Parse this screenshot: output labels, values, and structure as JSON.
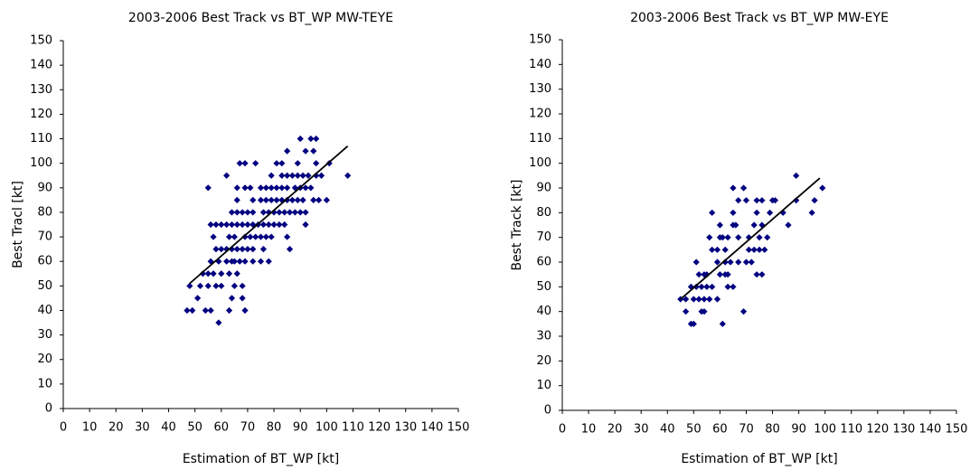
{
  "chart_data": [
    {
      "type": "scatter",
      "title": "2003-2006 Best Track vs BT_WP MW-TEYE",
      "x_label": "Estimation of BT_WP [kt]",
      "y_label": "Best Tracl [kt]",
      "color": "#000080",
      "x": [
        90,
        94,
        96,
        85,
        92,
        95,
        67,
        69,
        73,
        81,
        83,
        89,
        96,
        101,
        62,
        79,
        83,
        85,
        87,
        89,
        91,
        93,
        96,
        98,
        108,
        55,
        66,
        69,
        71,
        75,
        77,
        79,
        81,
        83,
        85,
        88,
        90,
        92,
        94,
        66,
        72,
        75,
        77,
        79,
        81,
        83,
        85,
        87,
        89,
        91,
        95,
        97,
        100,
        64,
        66,
        68,
        70,
        72,
        76,
        78,
        80,
        82,
        84,
        86,
        88,
        90,
        92,
        56,
        58,
        60,
        62,
        64,
        66,
        68,
        70,
        72,
        74,
        76,
        78,
        80,
        82,
        84,
        92,
        57,
        63,
        65,
        69,
        71,
        73,
        75,
        77,
        79,
        85,
        58,
        60,
        62,
        64,
        66,
        68,
        70,
        72,
        76,
        86,
        56,
        59,
        62,
        64,
        65,
        67,
        69,
        72,
        75,
        78,
        53,
        55,
        57,
        60,
        63,
        66,
        48,
        52,
        55,
        58,
        60,
        65,
        68,
        51,
        64,
        68,
        47,
        49,
        54,
        56,
        63,
        69,
        59
      ],
      "values": [
        110,
        110,
        110,
        105,
        105,
        105,
        100,
        100,
        100,
        100,
        100,
        100,
        100,
        100,
        95,
        95,
        95,
        95,
        95,
        95,
        95,
        95,
        95,
        95,
        95,
        90,
        90,
        90,
        90,
        90,
        90,
        90,
        90,
        90,
        90,
        90,
        90,
        90,
        90,
        85,
        85,
        85,
        85,
        85,
        85,
        85,
        85,
        85,
        85,
        85,
        85,
        85,
        85,
        80,
        80,
        80,
        80,
        80,
        80,
        80,
        80,
        80,
        80,
        80,
        80,
        80,
        80,
        75,
        75,
        75,
        75,
        75,
        75,
        75,
        75,
        75,
        75,
        75,
        75,
        75,
        75,
        75,
        75,
        70,
        70,
        70,
        70,
        70,
        70,
        70,
        70,
        70,
        70,
        65,
        65,
        65,
        65,
        65,
        65,
        65,
        65,
        65,
        65,
        60,
        60,
        60,
        60,
        60,
        60,
        60,
        60,
        60,
        60,
        55,
        55,
        55,
        55,
        55,
        55,
        50,
        50,
        50,
        50,
        50,
        50,
        50,
        45,
        45,
        45,
        40,
        40,
        40,
        40,
        40,
        40,
        35
      ],
      "trendline": {
        "x": [
          48,
          108
        ],
        "y": [
          51,
          107
        ]
      },
      "xlim": [
        0,
        150
      ],
      "ylim": [
        0,
        150
      ],
      "xticks": [
        0,
        10,
        20,
        30,
        40,
        50,
        60,
        70,
        80,
        90,
        100,
        110,
        120,
        130,
        140,
        150
      ],
      "yticks": [
        0,
        10,
        20,
        30,
        40,
        50,
        60,
        70,
        80,
        90,
        100,
        110,
        120,
        130,
        140,
        150
      ]
    },
    {
      "type": "scatter",
      "title": "2003-2006 Best Track vs BT_WP MW-EYE",
      "x_label": "Estimation of BT_WP [kt]",
      "y_label": "Best Track [kt]",
      "color": "#000080",
      "x": [
        89,
        65,
        69,
        99,
        67,
        70,
        74,
        76,
        80,
        81,
        89,
        96,
        57,
        65,
        74,
        79,
        84,
        95,
        60,
        65,
        66,
        73,
        76,
        86,
        56,
        60,
        61,
        63,
        67,
        71,
        75,
        78,
        57,
        59,
        62,
        71,
        73,
        75,
        77,
        51,
        59,
        62,
        64,
        67,
        70,
        72,
        52,
        54,
        55,
        60,
        62,
        63,
        74,
        76,
        49,
        51,
        53,
        55,
        57,
        63,
        65,
        45,
        47,
        50,
        52,
        54,
        56,
        59,
        47,
        53,
        54,
        69,
        49,
        50,
        61
      ],
      "values": [
        95,
        90,
        90,
        90,
        85,
        85,
        85,
        85,
        85,
        85,
        85,
        85,
        80,
        80,
        80,
        80,
        80,
        80,
        75,
        75,
        75,
        75,
        75,
        75,
        70,
        70,
        70,
        70,
        70,
        70,
        70,
        70,
        65,
        65,
        65,
        65,
        65,
        65,
        65,
        60,
        60,
        60,
        60,
        60,
        60,
        60,
        55,
        55,
        55,
        55,
        55,
        55,
        55,
        55,
        50,
        50,
        50,
        50,
        50,
        50,
        50,
        45,
        45,
        45,
        45,
        45,
        45,
        45,
        40,
        40,
        40,
        40,
        35,
        35,
        35
      ],
      "trendline": {
        "x": [
          45,
          98
        ],
        "y": [
          45,
          94
        ]
      },
      "xlim": [
        0,
        150
      ],
      "ylim": [
        0,
        150
      ],
      "xticks": [
        0,
        10,
        20,
        30,
        40,
        50,
        60,
        70,
        80,
        90,
        100,
        110,
        120,
        130,
        140,
        150
      ],
      "yticks": [
        0,
        10,
        20,
        30,
        40,
        50,
        60,
        70,
        80,
        90,
        100,
        110,
        120,
        130,
        140,
        150
      ]
    }
  ]
}
